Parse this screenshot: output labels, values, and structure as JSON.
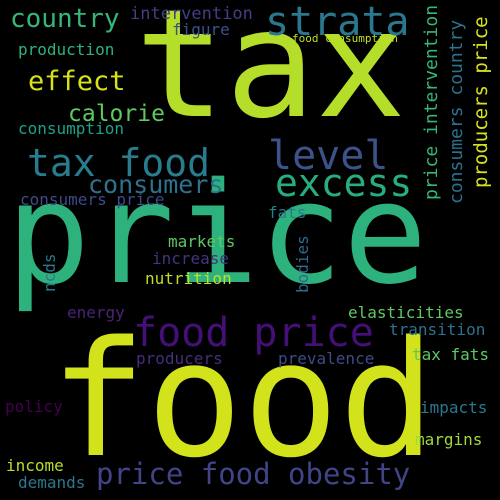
{
  "words": [
    {
      "id": "tax",
      "text": "tax",
      "color": "#b5de2b"
    },
    {
      "id": "price",
      "text": "price",
      "color": "#2db27d"
    },
    {
      "id": "food",
      "text": "food",
      "color": "#d2e21b"
    },
    {
      "id": "strata",
      "text": "strata",
      "color": "#2a788e"
    },
    {
      "id": "country",
      "text": "country",
      "color": "#35b779"
    },
    {
      "id": "intervention",
      "text": "intervention",
      "color": "#433e85"
    },
    {
      "id": "figure",
      "text": "figure",
      "color": "#3b518b"
    },
    {
      "id": "production",
      "text": "production",
      "color": "#2db27d"
    },
    {
      "id": "food-consumption",
      "text": "food consumption",
      "color": "#bddf26"
    },
    {
      "id": "effect",
      "text": "effect",
      "color": "#d8e219"
    },
    {
      "id": "calorie",
      "text": "calorie",
      "color": "#5ec962"
    },
    {
      "id": "consumption",
      "text": "consumption",
      "color": "#1fa188"
    },
    {
      "id": "tax-food",
      "text": "tax food",
      "color": "#287c8e"
    },
    {
      "id": "level",
      "text": "level",
      "color": "#3b528b"
    },
    {
      "id": "consumers",
      "text": "consumers",
      "color": "#2c728e"
    },
    {
      "id": "excess",
      "text": "excess",
      "color": "#27ad81"
    },
    {
      "id": "consumers-price",
      "text": "consumers price",
      "color": "#3e4a89"
    },
    {
      "id": "price-intervention",
      "text": "price intervention",
      "color": "#35b779"
    },
    {
      "id": "consumers-country",
      "text": "consumers country",
      "color": "#2c728e"
    },
    {
      "id": "producers-price",
      "text": "producers price",
      "color": "#d8e219"
    },
    {
      "id": "fats",
      "text": "fats",
      "color": "#287c8e"
    },
    {
      "id": "markets",
      "text": "markets",
      "color": "#5ec962"
    },
    {
      "id": "ncds",
      "text": "ncds",
      "color": "#2a788e"
    },
    {
      "id": "increase",
      "text": "increase",
      "color": "#46337f"
    },
    {
      "id": "nutrition",
      "text": "nutrition",
      "color": "#bddf26"
    },
    {
      "id": "bodies",
      "text": "bodies",
      "color": "#31688e"
    },
    {
      "id": "energy",
      "text": "energy",
      "color": "#482576"
    },
    {
      "id": "food-price",
      "text": "food price",
      "color": "#440f76"
    },
    {
      "id": "elasticities",
      "text": "elasticities",
      "color": "#5ec962"
    },
    {
      "id": "transition",
      "text": "transition",
      "color": "#2c728e"
    },
    {
      "id": "producers",
      "text": "producers",
      "color": "#472d7b"
    },
    {
      "id": "prevalence",
      "text": "prevalence",
      "color": "#3e4a89"
    },
    {
      "id": "tax-fats",
      "text": "tax fats",
      "color": "#5ec962"
    },
    {
      "id": "policy",
      "text": "policy",
      "color": "#440154"
    },
    {
      "id": "impacts",
      "text": "impacts",
      "color": "#2a788e"
    },
    {
      "id": "margins",
      "text": "margins",
      "color": "#9fda3a"
    },
    {
      "id": "income",
      "text": "income",
      "color": "#b5de2b"
    },
    {
      "id": "demands",
      "text": "demands",
      "color": "#2a788e"
    },
    {
      "id": "price-food-obesity",
      "text": "price food obesity",
      "color": "#414487"
    }
  ]
}
